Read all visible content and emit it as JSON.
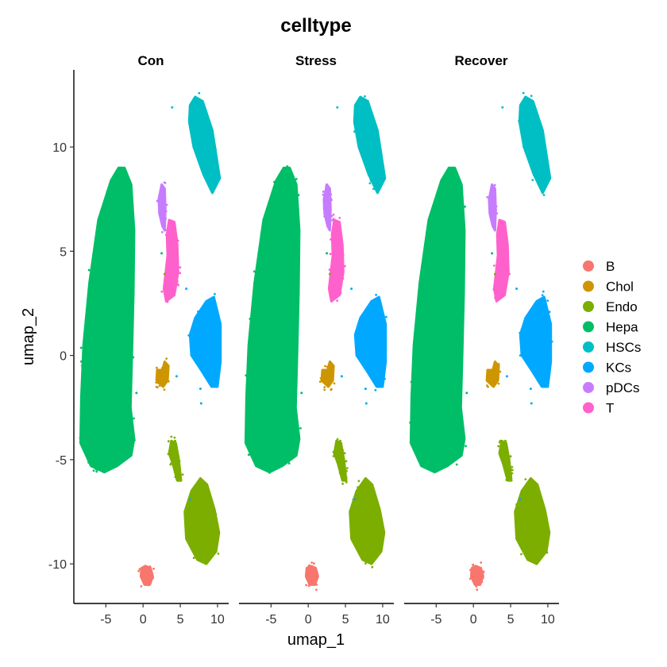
{
  "chart_data": {
    "type": "scatter",
    "title": "celltype",
    "xlabel": "umap_1",
    "ylabel": "umap_2",
    "xlim": [
      -9.3,
      11.5
    ],
    "ylim": [
      -11.9,
      13.7
    ],
    "x_ticks": [
      -5,
      0,
      5,
      10
    ],
    "y_ticks": [
      -10,
      -5,
      0,
      5,
      10
    ],
    "grid": false,
    "legend_position": "right",
    "panels": [
      "Con",
      "Stress",
      "Recover"
    ],
    "legend": [
      {
        "name": "B",
        "color": "#F8766D"
      },
      {
        "name": "Chol",
        "color": "#CD9600"
      },
      {
        "name": "Endo",
        "color": "#7CAE00"
      },
      {
        "name": "Hepa",
        "color": "#00BE67"
      },
      {
        "name": "HSCs",
        "color": "#00BFC4"
      },
      {
        "name": "KCs",
        "color": "#00A9FF"
      },
      {
        "name": "pDCs",
        "color": "#C77CFF"
      },
      {
        "name": "T",
        "color": "#FF61CC"
      }
    ],
    "clusters": [
      {
        "celltype": "Hepa",
        "x_range": [
          -8.5,
          -1.0
        ],
        "y_range": [
          -5.7,
          9.1
        ],
        "centroid": [
          -5.0,
          1.5
        ]
      },
      {
        "celltype": "HSCs",
        "x_range": [
          5.5,
          10.3
        ],
        "y_range": [
          7.8,
          12.5
        ],
        "centroid": [
          8.0,
          10.5
        ]
      },
      {
        "celltype": "KCs",
        "x_range": [
          4.5,
          10.4
        ],
        "y_range": [
          -2.5,
          2.8
        ],
        "centroid": [
          8.0,
          0.5
        ]
      },
      {
        "celltype": "Endo",
        "x_range": [
          3.0,
          10.2
        ],
        "y_range": [
          -10.0,
          -4.1
        ],
        "centroid": [
          7.5,
          -7.5
        ]
      },
      {
        "celltype": "T",
        "x_range": [
          2.5,
          4.8
        ],
        "y_range": [
          2.5,
          6.6
        ],
        "centroid": [
          3.6,
          4.8
        ]
      },
      {
        "celltype": "pDCs",
        "x_range": [
          2.0,
          3.2
        ],
        "y_range": [
          6.0,
          8.2
        ],
        "centroid": [
          2.6,
          7.2
        ]
      },
      {
        "celltype": "Chol",
        "x_range": [
          1.5,
          3.5
        ],
        "y_range": [
          -1.5,
          -0.4
        ],
        "centroid": [
          2.5,
          -0.9
        ]
      },
      {
        "celltype": "B",
        "x_range": [
          -0.3,
          1.4
        ],
        "y_range": [
          -11.0,
          -10.1
        ],
        "centroid": [
          0.6,
          -10.6
        ]
      }
    ]
  }
}
